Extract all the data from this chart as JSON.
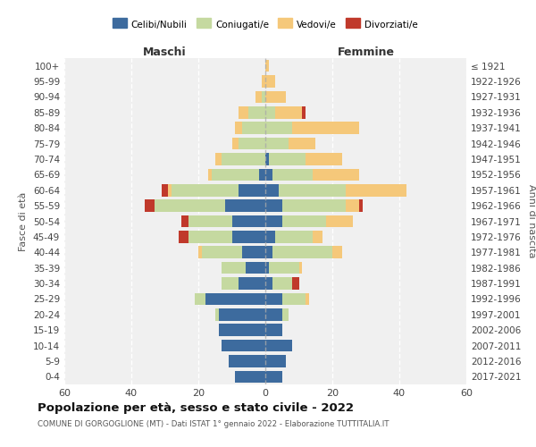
{
  "age_groups": [
    "0-4",
    "5-9",
    "10-14",
    "15-19",
    "20-24",
    "25-29",
    "30-34",
    "35-39",
    "40-44",
    "45-49",
    "50-54",
    "55-59",
    "60-64",
    "65-69",
    "70-74",
    "75-79",
    "80-84",
    "85-89",
    "90-94",
    "95-99",
    "100+"
  ],
  "birth_years": [
    "2017-2021",
    "2012-2016",
    "2007-2011",
    "2002-2006",
    "1997-2001",
    "1992-1996",
    "1987-1991",
    "1982-1986",
    "1977-1981",
    "1972-1976",
    "1967-1971",
    "1962-1966",
    "1957-1961",
    "1952-1956",
    "1947-1951",
    "1942-1946",
    "1937-1941",
    "1932-1936",
    "1927-1931",
    "1922-1926",
    "≤ 1921"
  ],
  "males": {
    "celibi": [
      9,
      11,
      13,
      14,
      14,
      18,
      8,
      6,
      7,
      10,
      10,
      12,
      8,
      2,
      0,
      0,
      0,
      0,
      0,
      0,
      0
    ],
    "coniugati": [
      0,
      0,
      0,
      0,
      1,
      3,
      5,
      7,
      12,
      13,
      13,
      21,
      20,
      14,
      13,
      8,
      7,
      5,
      1,
      0,
      0
    ],
    "vedovi": [
      0,
      0,
      0,
      0,
      0,
      0,
      0,
      0,
      1,
      0,
      0,
      0,
      1,
      1,
      2,
      2,
      2,
      3,
      2,
      1,
      0
    ],
    "divorziati": [
      0,
      0,
      0,
      0,
      0,
      0,
      0,
      0,
      0,
      3,
      2,
      3,
      2,
      0,
      0,
      0,
      0,
      0,
      0,
      0,
      0
    ]
  },
  "females": {
    "nubili": [
      5,
      6,
      8,
      5,
      5,
      5,
      2,
      1,
      2,
      3,
      5,
      5,
      4,
      2,
      1,
      0,
      0,
      0,
      0,
      0,
      0
    ],
    "coniugate": [
      0,
      0,
      0,
      0,
      2,
      7,
      6,
      9,
      18,
      11,
      13,
      19,
      20,
      12,
      11,
      7,
      8,
      3,
      0,
      0,
      0
    ],
    "vedove": [
      0,
      0,
      0,
      0,
      0,
      1,
      0,
      1,
      3,
      3,
      8,
      4,
      18,
      14,
      11,
      8,
      20,
      8,
      6,
      3,
      1
    ],
    "divorziate": [
      0,
      0,
      0,
      0,
      0,
      0,
      2,
      0,
      0,
      0,
      0,
      1,
      0,
      0,
      0,
      0,
      0,
      1,
      0,
      0,
      0
    ]
  },
  "colors": {
    "celibi": "#3d6b9e",
    "coniugati": "#c5d9a0",
    "vedovi": "#f5c87a",
    "divorziati": "#c0392b"
  },
  "xlim": 60,
  "title": "Popolazione per età, sesso e stato civile - 2022",
  "subtitle": "COMUNE DI GORGOGLIONE (MT) - Dati ISTAT 1° gennaio 2022 - Elaborazione TUTTITALIA.IT",
  "ylabel_left": "Fasce di età",
  "ylabel_right": "Anni di nascita",
  "xlabel_left": "Maschi",
  "xlabel_right": "Femmine",
  "bg_color": "#f0f0f0",
  "legend_labels": [
    "Celibi/Nubili",
    "Coniugati/e",
    "Vedovi/e",
    "Divorziati/e"
  ]
}
